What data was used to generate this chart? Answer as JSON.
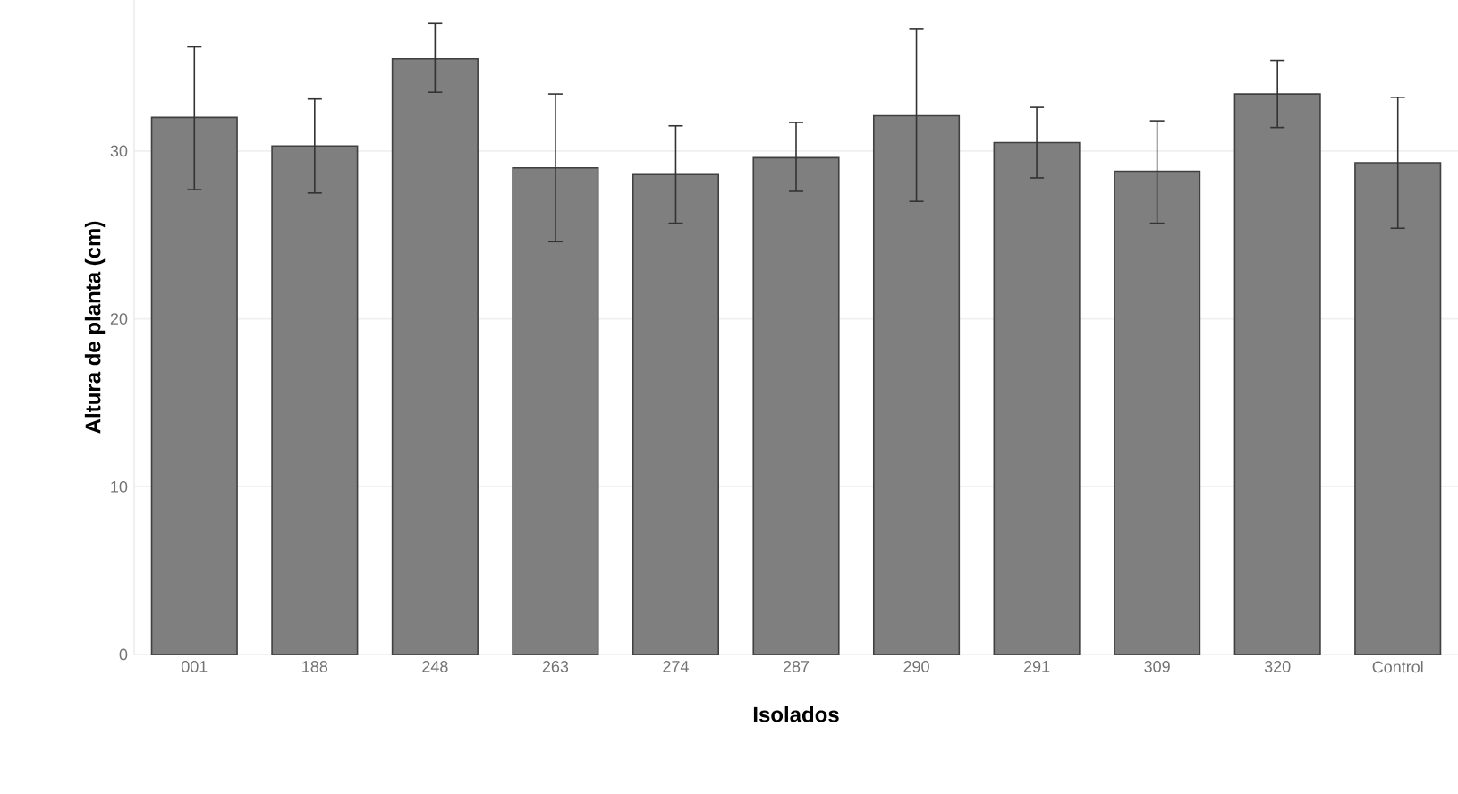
{
  "chart_data": {
    "type": "bar",
    "xlabel": "Isolados",
    "ylabel": "Altura de planta (cm)",
    "categories": [
      "001",
      "188",
      "248",
      "263",
      "274",
      "287",
      "290",
      "291",
      "309",
      "320",
      "Control"
    ],
    "values": [
      32.0,
      30.3,
      35.5,
      29.0,
      28.6,
      29.6,
      32.1,
      30.5,
      28.8,
      33.4,
      29.3
    ],
    "errors": [
      [
        27.7,
        36.2
      ],
      [
        27.5,
        33.1
      ],
      [
        33.5,
        37.6
      ],
      [
        24.6,
        33.4
      ],
      [
        25.7,
        31.5
      ],
      [
        27.6,
        31.7
      ],
      [
        27.0,
        37.3
      ],
      [
        28.4,
        32.6
      ],
      [
        25.7,
        31.8
      ],
      [
        31.4,
        35.4
      ],
      [
        25.4,
        33.2
      ]
    ],
    "color": "#7f7f7f",
    "ylim": [
      0,
      39
    ],
    "yticks": [
      0,
      10,
      20,
      30
    ],
    "grid": "y"
  }
}
